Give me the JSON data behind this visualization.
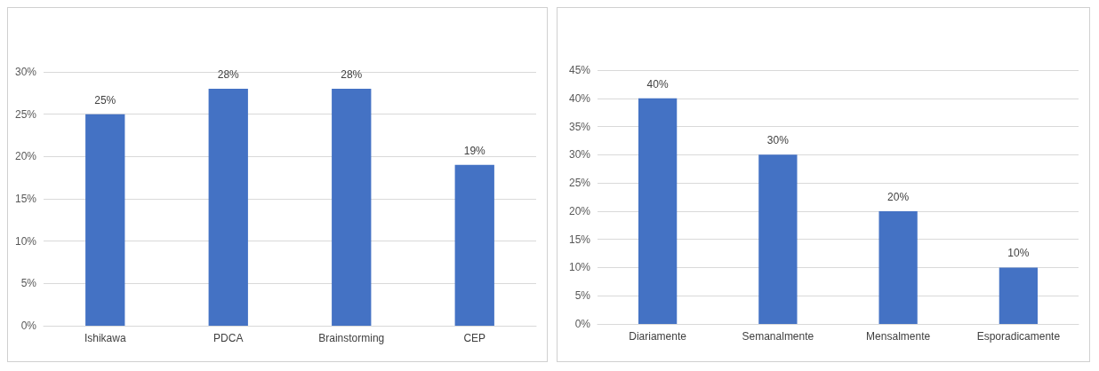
{
  "chart_data": [
    {
      "type": "bar",
      "categories": [
        "Ishikawa",
        "PDCA",
        "Brainstorming",
        "CEP"
      ],
      "values": [
        25,
        28,
        28,
        19
      ],
      "color": "#4472c4",
      "value_labels": [
        "25%",
        "28%",
        "28%",
        "19%"
      ],
      "ylim": [
        0,
        30
      ],
      "yticks": [
        {
          "value": 0,
          "label": "0%"
        },
        {
          "value": 5,
          "label": "5%"
        },
        {
          "value": 10,
          "label": "10%"
        },
        {
          "value": 15,
          "label": "15%"
        },
        {
          "value": 20,
          "label": "20%"
        },
        {
          "value": 25,
          "label": "25%"
        },
        {
          "value": 30,
          "label": "30%"
        }
      ],
      "grid": "y"
    },
    {
      "type": "bar",
      "categories": [
        "Diariamente",
        "Semanalmente",
        "Mensalmente",
        "Esporadicamente"
      ],
      "values": [
        40,
        30,
        20,
        10
      ],
      "color": "#4472c4",
      "value_labels": [
        "40%",
        "30%",
        "20%",
        "10%"
      ],
      "ylim": [
        0,
        45
      ],
      "yticks": [
        {
          "value": 0,
          "label": "0%"
        },
        {
          "value": 5,
          "label": "5%"
        },
        {
          "value": 10,
          "label": "10%"
        },
        {
          "value": 15,
          "label": "15%"
        },
        {
          "value": 20,
          "label": "20%"
        },
        {
          "value": 25,
          "label": "25%"
        },
        {
          "value": 30,
          "label": "30%"
        },
        {
          "value": 35,
          "label": "35%"
        },
        {
          "value": 40,
          "label": "40%"
        },
        {
          "value": 45,
          "label": "45%"
        }
      ],
      "grid": "y"
    }
  ]
}
